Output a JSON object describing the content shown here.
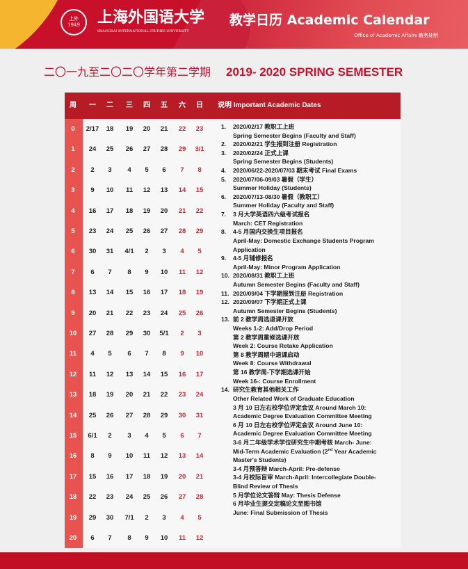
{
  "banner": {
    "seal_text": "上外 1949",
    "university_cn": "上海外国语大学",
    "university_en": "SHANGHAI INTERNATIONAL STUDIES UNIVERSITY",
    "title": "教学日历  Academic Calendar",
    "subtitle": "Office of Academic Affairs 教务处制"
  },
  "heading": {
    "cn": "二〇一九至二〇二〇学年第二学期",
    "en": "2019- 2020 SPRING SEMESTER"
  },
  "colors": {
    "brand_red": "#c20f23",
    "header_red": "#b71c26",
    "week_col": "#e8534f",
    "weekend_text": "#c62a32"
  },
  "table": {
    "headers": [
      "周",
      "一",
      "二",
      "三",
      "四",
      "五",
      "六",
      "日"
    ],
    "notes_header": "说明   Important Academic Dates",
    "rows": [
      [
        "0",
        "2/17",
        "18",
        "19",
        "20",
        "21",
        "22",
        "23"
      ],
      [
        "1",
        "24",
        "25",
        "26",
        "27",
        "28",
        "29",
        "3/1"
      ],
      [
        "2",
        "2",
        "3",
        "4",
        "5",
        "6",
        "7",
        "8"
      ],
      [
        "3",
        "9",
        "10",
        "11",
        "12",
        "13",
        "14",
        "15"
      ],
      [
        "4",
        "16",
        "17",
        "18",
        "19",
        "20",
        "21",
        "22"
      ],
      [
        "5",
        "23",
        "24",
        "25",
        "26",
        "27",
        "28",
        "29"
      ],
      [
        "6",
        "30",
        "31",
        "4/1",
        "2",
        "3",
        "4",
        "5"
      ],
      [
        "7",
        "6",
        "7",
        "8",
        "9",
        "10",
        "11",
        "12"
      ],
      [
        "8",
        "13",
        "14",
        "15",
        "16",
        "17",
        "18",
        "19"
      ],
      [
        "9",
        "20",
        "21",
        "22",
        "23",
        "24",
        "25",
        "26"
      ],
      [
        "10",
        "27",
        "28",
        "29",
        "30",
        "5/1",
        "2",
        "3"
      ],
      [
        "11",
        "4",
        "5",
        "6",
        "7",
        "8",
        "9",
        "10"
      ],
      [
        "12",
        "11",
        "12",
        "13",
        "14",
        "15",
        "16",
        "17"
      ],
      [
        "13",
        "18",
        "19",
        "20",
        "21",
        "22",
        "23",
        "24"
      ],
      [
        "14",
        "25",
        "26",
        "27",
        "28",
        "29",
        "30",
        "31"
      ],
      [
        "15",
        "6/1",
        "2",
        "3",
        "4",
        "5",
        "6",
        "7"
      ],
      [
        "16",
        "8",
        "9",
        "10",
        "11",
        "12",
        "13",
        "14"
      ],
      [
        "17",
        "15",
        "16",
        "17",
        "18",
        "19",
        "20",
        "21"
      ],
      [
        "18",
        "22",
        "23",
        "24",
        "25",
        "26",
        "27",
        "28"
      ],
      [
        "19",
        "29",
        "30",
        "7/1",
        "2",
        "3",
        "4",
        "5"
      ],
      [
        "20",
        "6",
        "7",
        "8",
        "9",
        "10",
        "11",
        "12"
      ]
    ]
  },
  "notes": [
    {
      "num": "1.",
      "lines": [
        "2020/02/17  教职工上班",
        "Spring Semester Begins (Faculty and Staff)"
      ]
    },
    {
      "num": "2.",
      "lines": [
        "2020/02/21  学生报到注册  Registration"
      ]
    },
    {
      "num": "3.",
      "lines": [
        "2020/02/24  正式上课",
        "Spring Semester Begins (Students)"
      ]
    },
    {
      "num": "4.",
      "lines": [
        "2020/06/22-2020/07/03 期末考试  Final Exams"
      ]
    },
    {
      "num": "5.",
      "lines": [
        "2020/07/06-09/03  暑假（学生）",
        "Summer Holiday (Students)"
      ]
    },
    {
      "num": "6.",
      "lines": [
        "2020/07/13-08/30  暑假（教职工）",
        "Summer Holiday (Faculty and Staff)"
      ]
    },
    {
      "num": "7.",
      "lines": [
        "3 月大学英语四六级考试报名",
        "March: CET Registration"
      ]
    },
    {
      "num": "8.",
      "lines": [
        "4-5 月国内交换生项目报名",
        "April-May: Domestic Exchange Students Program",
        "Application"
      ]
    },
    {
      "num": "9.",
      "lines": [
        "4-5 月辅修报名",
        "April-May: Minor Program Application"
      ]
    },
    {
      "num": "10.",
      "lines": [
        "2020/08/31  教职工上班",
        "Autumn Semester Begins (Faculty and Staff)"
      ]
    },
    {
      "num": "11.",
      "lines": [
        "2020/09/04 下学期报到注册  Registration"
      ]
    },
    {
      "num": "12.",
      "lines": [
        "2020/09/07  下学期正式上课",
        "Autumn Semester Begins (Students)"
      ]
    },
    {
      "num": "13.",
      "lines": [
        "前 2 教学周选退课开放",
        "Weeks 1-2: Add/Drop Period",
        "第 2 教学周重修选课开放",
        "Week 2: Course Retake Application",
        "第 8 教学周期中退课启动",
        "Week 8: Course Withdrawal",
        "第 16 教学周-下学期选课开始",
        "Week 16-: Course Enrollment"
      ]
    },
    {
      "num": "14.",
      "lines": [
        "研究生教育其他相关工作",
        "Other Related Work of Graduate Education",
        "3 月 10 日左右校学位评定会议  Around March 10:",
        "Academic Degree Evaluation Committee Meeting",
        "6 月 10 日左右校学位评定会议  Around June 10:",
        "Academic Degree Evaluation Committee Meeting",
        "3-6 月二年级学术学位研究生中期考核  March- June:",
        [
          "Mid-Term Academic Evaluation (2",
          "nd",
          " Year Academic"
        ],
        "Master's Students)",
        "3-4 月预答辩  March-April: Pre-defense",
        "3-4 月校际盲审  March-April: Intercollegiate Double-",
        "Blind Review of Thesis",
        "5 月学位论文答辩  May: Thesis Defense",
        "6 月毕业生提交定稿论文至图书馆",
        "June: Final Submission of Thesis"
      ]
    }
  ]
}
